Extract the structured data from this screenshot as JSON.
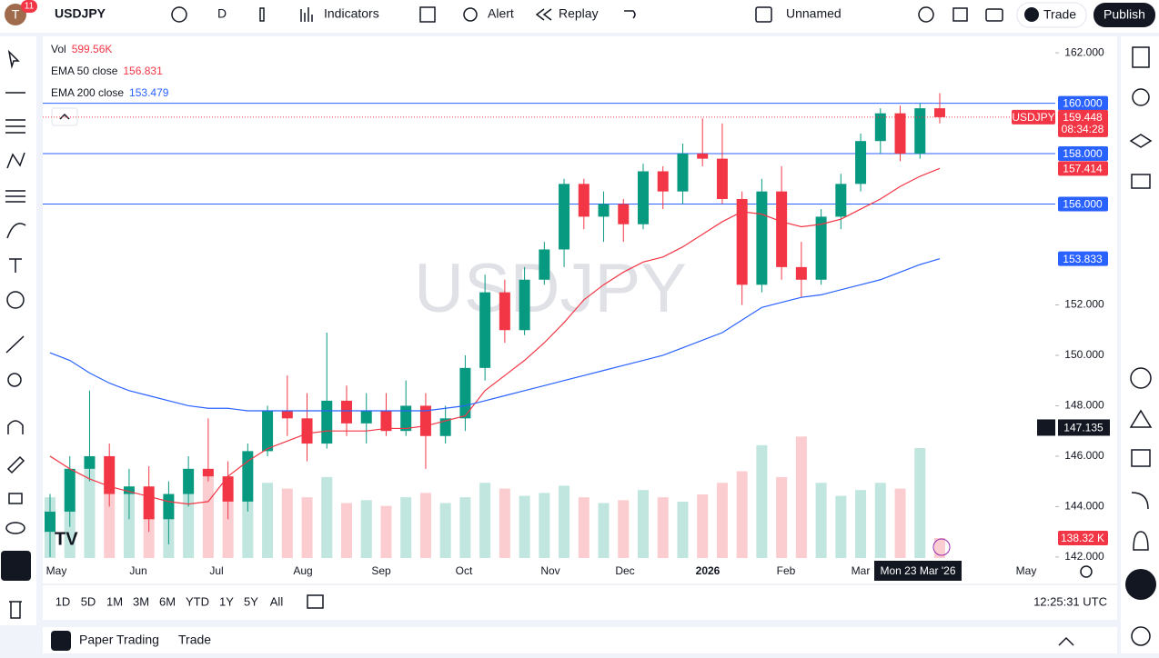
{
  "toolbar": {
    "avatar": "T",
    "badge": "11",
    "symbol": "USDJPY",
    "interval": "D",
    "indicators": "Indicators",
    "alert": "Alert",
    "replay": "Replay",
    "layout": "Unnamed",
    "trade": "Trade",
    "publish": "Publish"
  },
  "chart_data": {
    "type": "candlestick",
    "watermark": "USDJPY",
    "legend": [
      {
        "name": "Vol",
        "value": 599.56,
        "label": "599.56K",
        "color": "#f23645"
      },
      {
        "name": "EMA 50 close",
        "value": 156.831,
        "label": "156.831",
        "color": "#f23645"
      },
      {
        "name": "EMA 200 close",
        "value": 153.479,
        "label": "153.479",
        "color": "#2962ff"
      }
    ],
    "ylim": [
      141.6,
      162.4
    ],
    "yticks": [
      {
        "value": 142,
        "label": "142.000"
      },
      {
        "value": 144,
        "label": "144.000"
      },
      {
        "value": 146,
        "label": "146.000"
      },
      {
        "value": 148,
        "label": "148.000"
      },
      {
        "value": 150,
        "label": "150.000"
      },
      {
        "value": 152,
        "label": "152.000"
      },
      {
        "value": 162,
        "label": "162.000"
      }
    ],
    "xaxis_labels": [
      "May",
      "Jun",
      "Jul",
      "Aug",
      "Sep",
      "Oct",
      "Nov",
      "Dec",
      "2026",
      "Feb",
      "Mar",
      "May"
    ],
    "crosshair_date": "Mon 23 Mar '26",
    "crosshair_price": {
      "value": 147.135,
      "label": "147.135"
    },
    "up_color": "#089981",
    "down_color": "#f23645",
    "open": [
      143.0,
      143.8,
      145.5,
      146.0,
      144.5,
      144.8,
      143.5,
      144.5,
      145.5,
      145.2,
      144.2,
      146.2,
      147.8,
      147.5,
      146.5,
      148.2,
      147.3,
      147.8,
      147.0,
      148.0,
      146.8,
      147.5,
      149.5,
      152.5,
      151.0,
      153.0,
      154.2,
      156.8,
      155.5,
      156.0,
      155.2,
      157.3,
      156.5,
      158.0,
      157.8,
      156.2,
      152.8,
      156.5,
      153.5,
      153.0,
      155.5,
      156.8,
      158.5,
      159.6,
      158.0,
      159.8
    ],
    "high": [
      144.5,
      146.0,
      148.6,
      146.5,
      145.5,
      145.6,
      145.0,
      146.0,
      147.5,
      145.8,
      146.5,
      148.0,
      149.2,
      148.5,
      150.9,
      148.8,
      148.5,
      148.5,
      149.0,
      148.5,
      148.0,
      150.0,
      153.2,
      153.0,
      153.5,
      154.5,
      157.0,
      157.0,
      156.5,
      156.2,
      157.6,
      157.5,
      158.4,
      159.4,
      159.2,
      156.5,
      157.0,
      157.5,
      154.5,
      155.8,
      157.2,
      158.8,
      159.8,
      159.9,
      160.0,
      160.4
    ],
    "low": [
      142.0,
      143.2,
      145.0,
      144.0,
      143.5,
      143.0,
      142.5,
      144.0,
      145.0,
      143.5,
      143.8,
      146.0,
      146.8,
      145.8,
      146.3,
      146.8,
      146.5,
      146.8,
      146.8,
      145.5,
      146.5,
      147.0,
      149.0,
      150.5,
      150.8,
      152.8,
      153.5,
      155.0,
      154.5,
      154.5,
      155.0,
      155.8,
      156.0,
      157.5,
      156.0,
      152.0,
      152.5,
      153.0,
      152.3,
      152.8,
      155.0,
      156.5,
      158.0,
      157.7,
      157.8,
      159.2
    ],
    "close": [
      143.8,
      145.5,
      146.0,
      144.5,
      144.8,
      143.5,
      144.5,
      145.5,
      145.2,
      144.2,
      146.2,
      147.8,
      147.5,
      146.5,
      148.2,
      147.3,
      147.8,
      147.0,
      148.0,
      146.8,
      147.5,
      149.5,
      152.5,
      151.0,
      153.0,
      154.2,
      156.8,
      155.5,
      156.0,
      155.2,
      157.3,
      156.5,
      158.0,
      157.8,
      156.2,
      152.8,
      156.5,
      153.5,
      153.0,
      155.5,
      156.8,
      158.5,
      159.6,
      158.0,
      159.8,
      159.448
    ],
    "volume": [
      420,
      380,
      650,
      500,
      450,
      480,
      420,
      520,
      600,
      450,
      400,
      520,
      480,
      420,
      560,
      380,
      400,
      360,
      420,
      450,
      380,
      420,
      520,
      480,
      430,
      450,
      500,
      420,
      380,
      400,
      470,
      420,
      390,
      440,
      520,
      600,
      780,
      560,
      840,
      520,
      430,
      470,
      520,
      480,
      760,
      138.32
    ],
    "volume_ylim": [
      0,
      3500
    ],
    "series": [
      {
        "name": "EMA 50",
        "color": "#f23645",
        "values": [
          146,
          145.5,
          145.1,
          144.8,
          144.6,
          144.4,
          144.2,
          144.1,
          144.2,
          145.2,
          145.8,
          146.3,
          146.6,
          146.9,
          147.0,
          147.0,
          147.0,
          147.1,
          147.1,
          147.2,
          147.4,
          147.6,
          148.6,
          149.2,
          149.8,
          150.5,
          151.3,
          152.2,
          152.8,
          153.3,
          153.7,
          153.9,
          154.3,
          154.8,
          155.3,
          155.7,
          155.6,
          155.3,
          155.1,
          155.2,
          155.4,
          155.8,
          156.2,
          156.7,
          157.1,
          157.414
        ]
      },
      {
        "name": "EMA 200",
        "color": "#2962ff",
        "values": [
          150.1,
          149.8,
          149.3,
          148.9,
          148.6,
          148.4,
          148.2,
          148.0,
          147.9,
          147.9,
          147.8,
          147.8,
          147.8,
          147.8,
          147.8,
          147.8,
          147.8,
          147.8,
          147.8,
          147.8,
          147.9,
          148.0,
          148.2,
          148.4,
          148.6,
          148.8,
          149.0,
          149.2,
          149.4,
          149.6,
          149.8,
          150.0,
          150.3,
          150.6,
          150.9,
          151.4,
          151.9,
          152.1,
          152.3,
          152.4,
          152.6,
          152.8,
          153.0,
          153.3,
          153.6,
          153.833
        ]
      }
    ],
    "hlines": [
      {
        "value": 160,
        "label": "160.000"
      },
      {
        "value": 158,
        "label": "158.000"
      },
      {
        "value": 156,
        "label": "156.000"
      }
    ],
    "hline_color": "#2962ff",
    "last_price": {
      "symbol": "USDJPY",
      "value": 159.448,
      "label": "159.448",
      "countdown": "08:34:28"
    },
    "ema_tags": [
      {
        "value": 157.414,
        "label": "157.414",
        "color": "#f23645"
      },
      {
        "value": 153.833,
        "label": "153.833",
        "color": "#2962ff"
      }
    ],
    "volume_tag": {
      "value": 138.32,
      "label": "138.32 K"
    }
  },
  "timeframes": [
    "1D",
    "5D",
    "1M",
    "3M",
    "6M",
    "YTD",
    "1Y",
    "5Y",
    "All"
  ],
  "clock": "12:25:31 UTC",
  "bottom_panel": {
    "paper": "Paper Trading",
    "trade": "Trade"
  }
}
